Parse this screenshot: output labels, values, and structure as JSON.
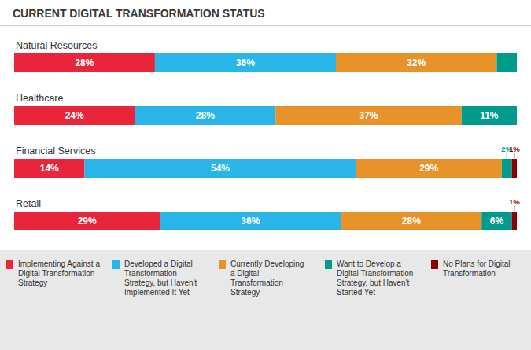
{
  "chart_data": {
    "type": "bar",
    "orientation": "horizontal",
    "stacked": true,
    "title": "CURRENT DIGITAL TRANSFORMATION STATUS",
    "categories": [
      "Natural Resources",
      "Healthcare",
      "Financial Services",
      "Retail"
    ],
    "series": [
      {
        "name": "Implementing Against a\nDigital Transformation\nStrategy",
        "color": "#E8253A",
        "values": [
          28,
          24,
          14,
          29
        ],
        "value_labels": [
          "28%",
          "24%",
          "14%",
          "29%"
        ]
      },
      {
        "name": "Developed a Digital\nTransformation\nStrategy, but Haven't\nImplemented It Yet",
        "color": "#29B5E8",
        "values": [
          36,
          28,
          54,
          36
        ],
        "value_labels": [
          "36%",
          "28%",
          "54%",
          "36%"
        ]
      },
      {
        "name": "Currently Developing\na Digital\nTransformation\nStrategy",
        "color": "#E8922A",
        "values": [
          32,
          37,
          29,
          28
        ],
        "value_labels": [
          "32%",
          "37%",
          "29%",
          "28%"
        ]
      },
      {
        "name": "Want to Develop a\nDigital Transformation\nStrategy, but Haven't\nStarted Yet",
        "color": "#009B8D",
        "values": [
          4,
          11,
          2,
          6
        ],
        "value_labels": [
          null,
          "11%",
          "2%",
          "6%"
        ]
      },
      {
        "name": "No Plans for Digital\nTransformation",
        "color": "#8B0000",
        "values": [
          0,
          0,
          1,
          1
        ],
        "value_labels": [
          null,
          null,
          "1%",
          "1%"
        ]
      }
    ],
    "xlim": [
      0,
      100
    ],
    "tick_labels": false,
    "grid": false,
    "legend": "bottom",
    "data_labels": true
  }
}
